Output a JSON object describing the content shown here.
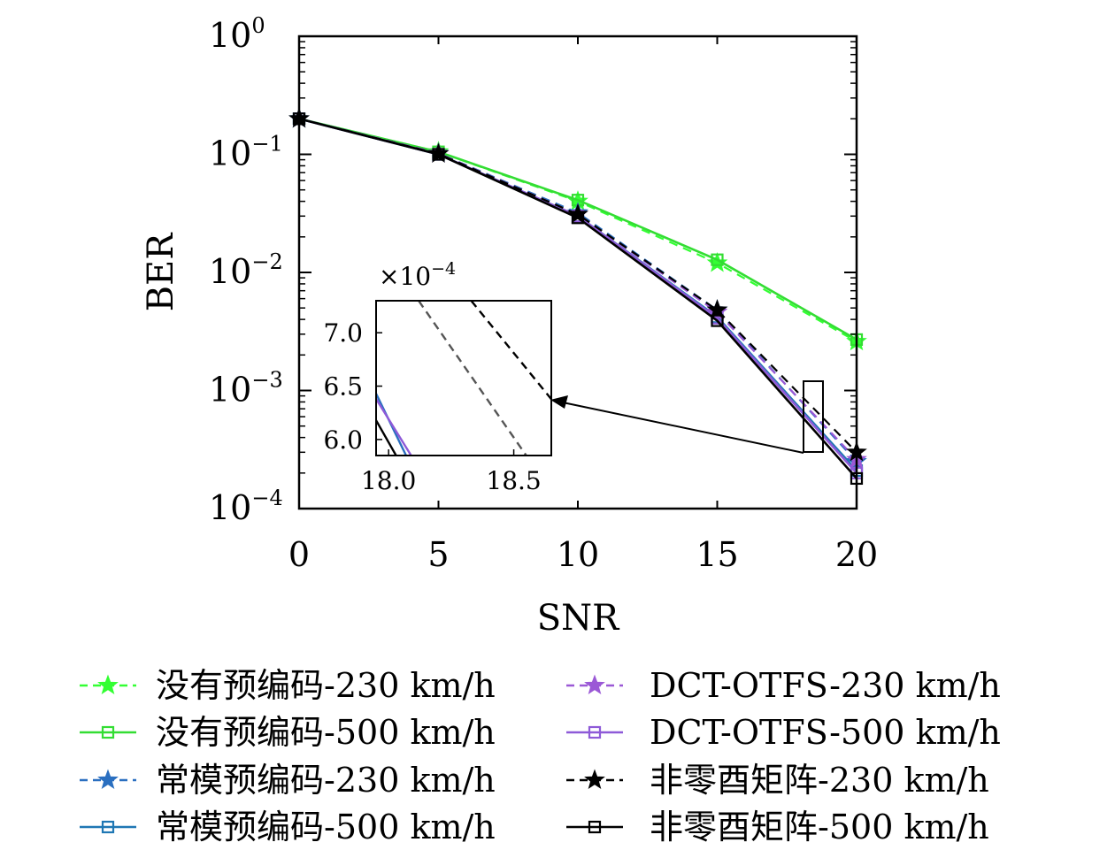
{
  "chart_data": {
    "type": "line",
    "xlabel": "SNR",
    "ylabel": "BER",
    "xlim": [
      0,
      20
    ],
    "ylim": [
      0.0001,
      1
    ],
    "yscale": "log",
    "x_ticks": [
      "0",
      "5",
      "10",
      "15",
      "20"
    ],
    "y_ticks": [
      {
        "base": "10",
        "exp": "0"
      },
      {
        "base": "10",
        "exp": "−1"
      },
      {
        "base": "10",
        "exp": "−2"
      },
      {
        "base": "10",
        "exp": "−3"
      },
      {
        "base": "10",
        "exp": "−4"
      }
    ],
    "grid": false,
    "legend_position": "bottom",
    "x": [
      0,
      5,
      10,
      15,
      20
    ],
    "series": [
      {
        "name": "没有预编码-230 km/h",
        "values": [
          0.2,
          0.105,
          0.04,
          0.012,
          0.0026
        ],
        "color": "#33ff33",
        "dash": "dash",
        "marker": "star"
      },
      {
        "name": "没有预编码-500 km/h",
        "values": [
          0.2,
          0.105,
          0.041,
          0.0128,
          0.0027
        ],
        "color": "#33dd33",
        "dash": "solid",
        "marker": "square"
      },
      {
        "name": "常模预编码-230 km/h",
        "values": [
          0.2,
          0.102,
          0.032,
          0.0048,
          0.00025
        ],
        "color": "#2a6fc0",
        "dash": "dash",
        "marker": "star"
      },
      {
        "name": "常模预编码-500 km/h",
        "values": [
          0.2,
          0.1,
          0.03,
          0.0042,
          0.00021
        ],
        "color": "#1f77b4",
        "dash": "solid",
        "marker": "square"
      },
      {
        "name": "DCT-OTFS-230 km/h",
        "values": [
          0.2,
          0.102,
          0.031,
          0.0046,
          0.00026
        ],
        "color": "#9b59d6",
        "dash": "dash",
        "marker": "star"
      },
      {
        "name": "DCT-OTFS-500 km/h",
        "values": [
          0.2,
          0.1,
          0.03,
          0.0041,
          0.0002
        ],
        "color": "#8e5ad8",
        "dash": "solid",
        "marker": "square"
      },
      {
        "name": "非零酉矩阵-230 km/h",
        "values": [
          0.2,
          0.101,
          0.031,
          0.0048,
          0.0003
        ],
        "color": "#000000",
        "dash": "dash",
        "marker": "star"
      },
      {
        "name": "非零酉矩阵-500 km/h",
        "values": [
          0.2,
          0.1,
          0.029,
          0.0039,
          0.00018
        ],
        "color": "#000000",
        "dash": "solid",
        "marker": "square"
      }
    ],
    "inset": {
      "multiplier": {
        "base": "×10",
        "exp": "−4"
      },
      "xlim": [
        17.95,
        18.65
      ],
      "ylim": [
        5.85,
        7.3
      ],
      "x_ticks": [
        "18.0",
        "18.5"
      ],
      "y_ticks": [
        "7.0",
        "6.5",
        "6.0"
      ],
      "lines": [
        {
          "color": "#000000",
          "dash": "dash",
          "x": [
            18.33,
            18.66
          ],
          "y": [
            7.3,
            6.35
          ]
        },
        {
          "color": "#555555",
          "dash": "dash",
          "x": [
            18.12,
            18.55
          ],
          "y": [
            7.3,
            5.85
          ]
        },
        {
          "color": "#2a6fc0",
          "dash": "solid",
          "x": [
            17.95,
            18.07
          ],
          "y": [
            6.43,
            5.85
          ]
        },
        {
          "color": "#8e5ad8",
          "dash": "solid",
          "x": [
            17.95,
            18.09
          ],
          "y": [
            6.38,
            5.85
          ]
        },
        {
          "color": "#000000",
          "dash": "solid",
          "x": [
            17.95,
            18.03
          ],
          "y": [
            6.18,
            5.85
          ]
        }
      ]
    }
  }
}
